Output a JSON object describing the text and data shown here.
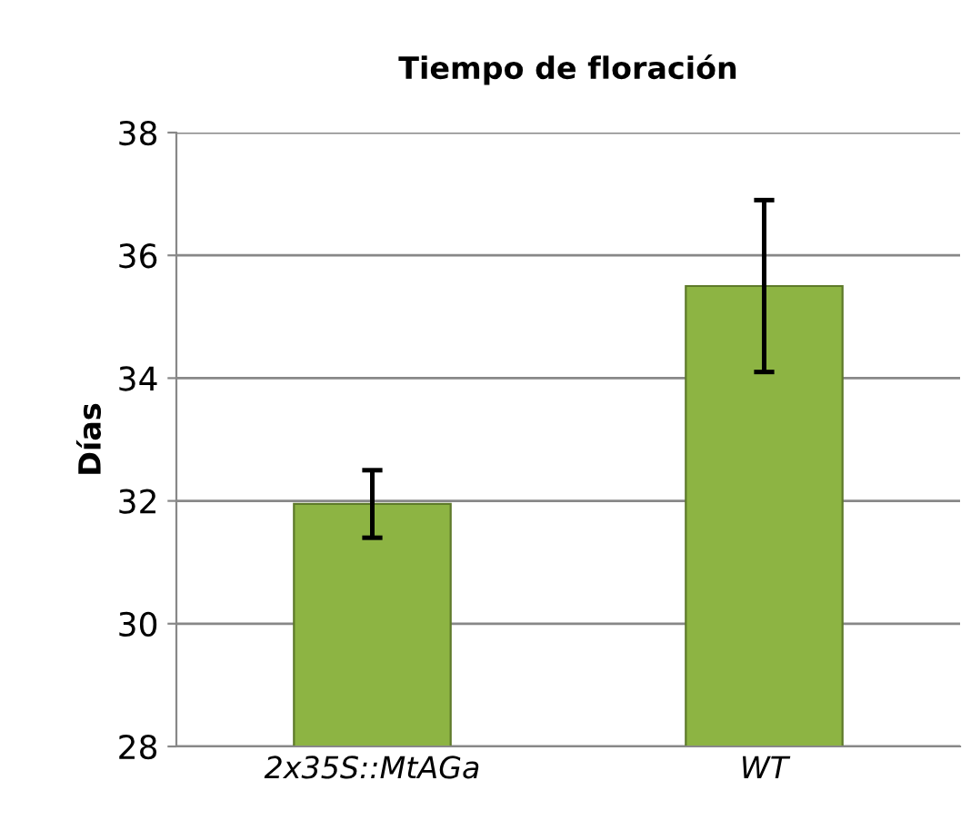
{
  "chart_data": {
    "type": "bar",
    "title": "Tiempo de floración",
    "ylabel": "Días",
    "categories": [
      "2x35S::MtAGa",
      "WT"
    ],
    "values": [
      31.95,
      35.5
    ],
    "errors": [
      0.55,
      1.4
    ],
    "color": "#8db443",
    "ylim": [
      28,
      38
    ],
    "yticks": [
      28,
      30,
      32,
      34,
      36,
      38
    ],
    "grid": "y"
  }
}
